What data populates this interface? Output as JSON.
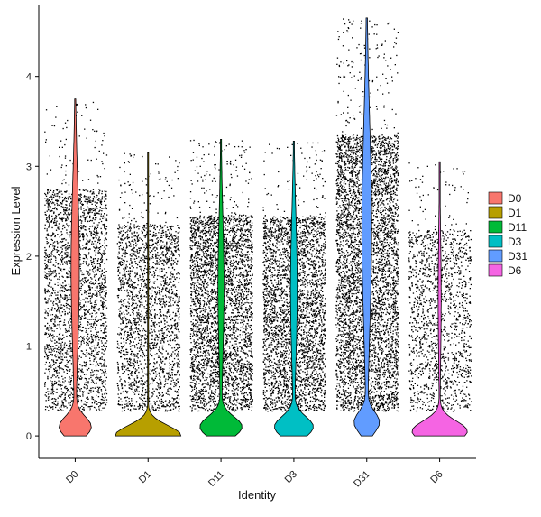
{
  "chart_data": {
    "type": "violin",
    "xlabel": "Identity",
    "ylabel": "Expression Level",
    "categories": [
      "D0",
      "D1",
      "D11",
      "D3",
      "D31",
      "D6"
    ],
    "ylim": [
      -0.25,
      4.8
    ],
    "yticks": [
      0,
      1,
      2,
      3,
      4
    ],
    "grid": false,
    "legend_position": "right",
    "series": [
      {
        "name": "D0",
        "color": "#F8766D",
        "max": 3.75,
        "mode": 0.1,
        "zero_fraction": 0.45,
        "points": 2600
      },
      {
        "name": "D1",
        "color": "#B79F00",
        "max": 3.15,
        "mode": 0.0,
        "zero_fraction": 0.97,
        "points": 2200
      },
      {
        "name": "D11",
        "color": "#00BA38",
        "max": 3.3,
        "mode": 0.1,
        "zero_fraction": 0.6,
        "points": 3500
      },
      {
        "name": "D3",
        "color": "#00BFC4",
        "max": 3.28,
        "mode": 0.1,
        "zero_fraction": 0.55,
        "points": 3200
      },
      {
        "name": "D31",
        "color": "#619CFF",
        "max": 4.65,
        "mode": 0.15,
        "zero_fraction": 0.35,
        "points": 4800
      },
      {
        "name": "D6",
        "color": "#F564E3",
        "max": 3.05,
        "mode": 0.05,
        "zero_fraction": 0.8,
        "points": 1500
      }
    ]
  }
}
